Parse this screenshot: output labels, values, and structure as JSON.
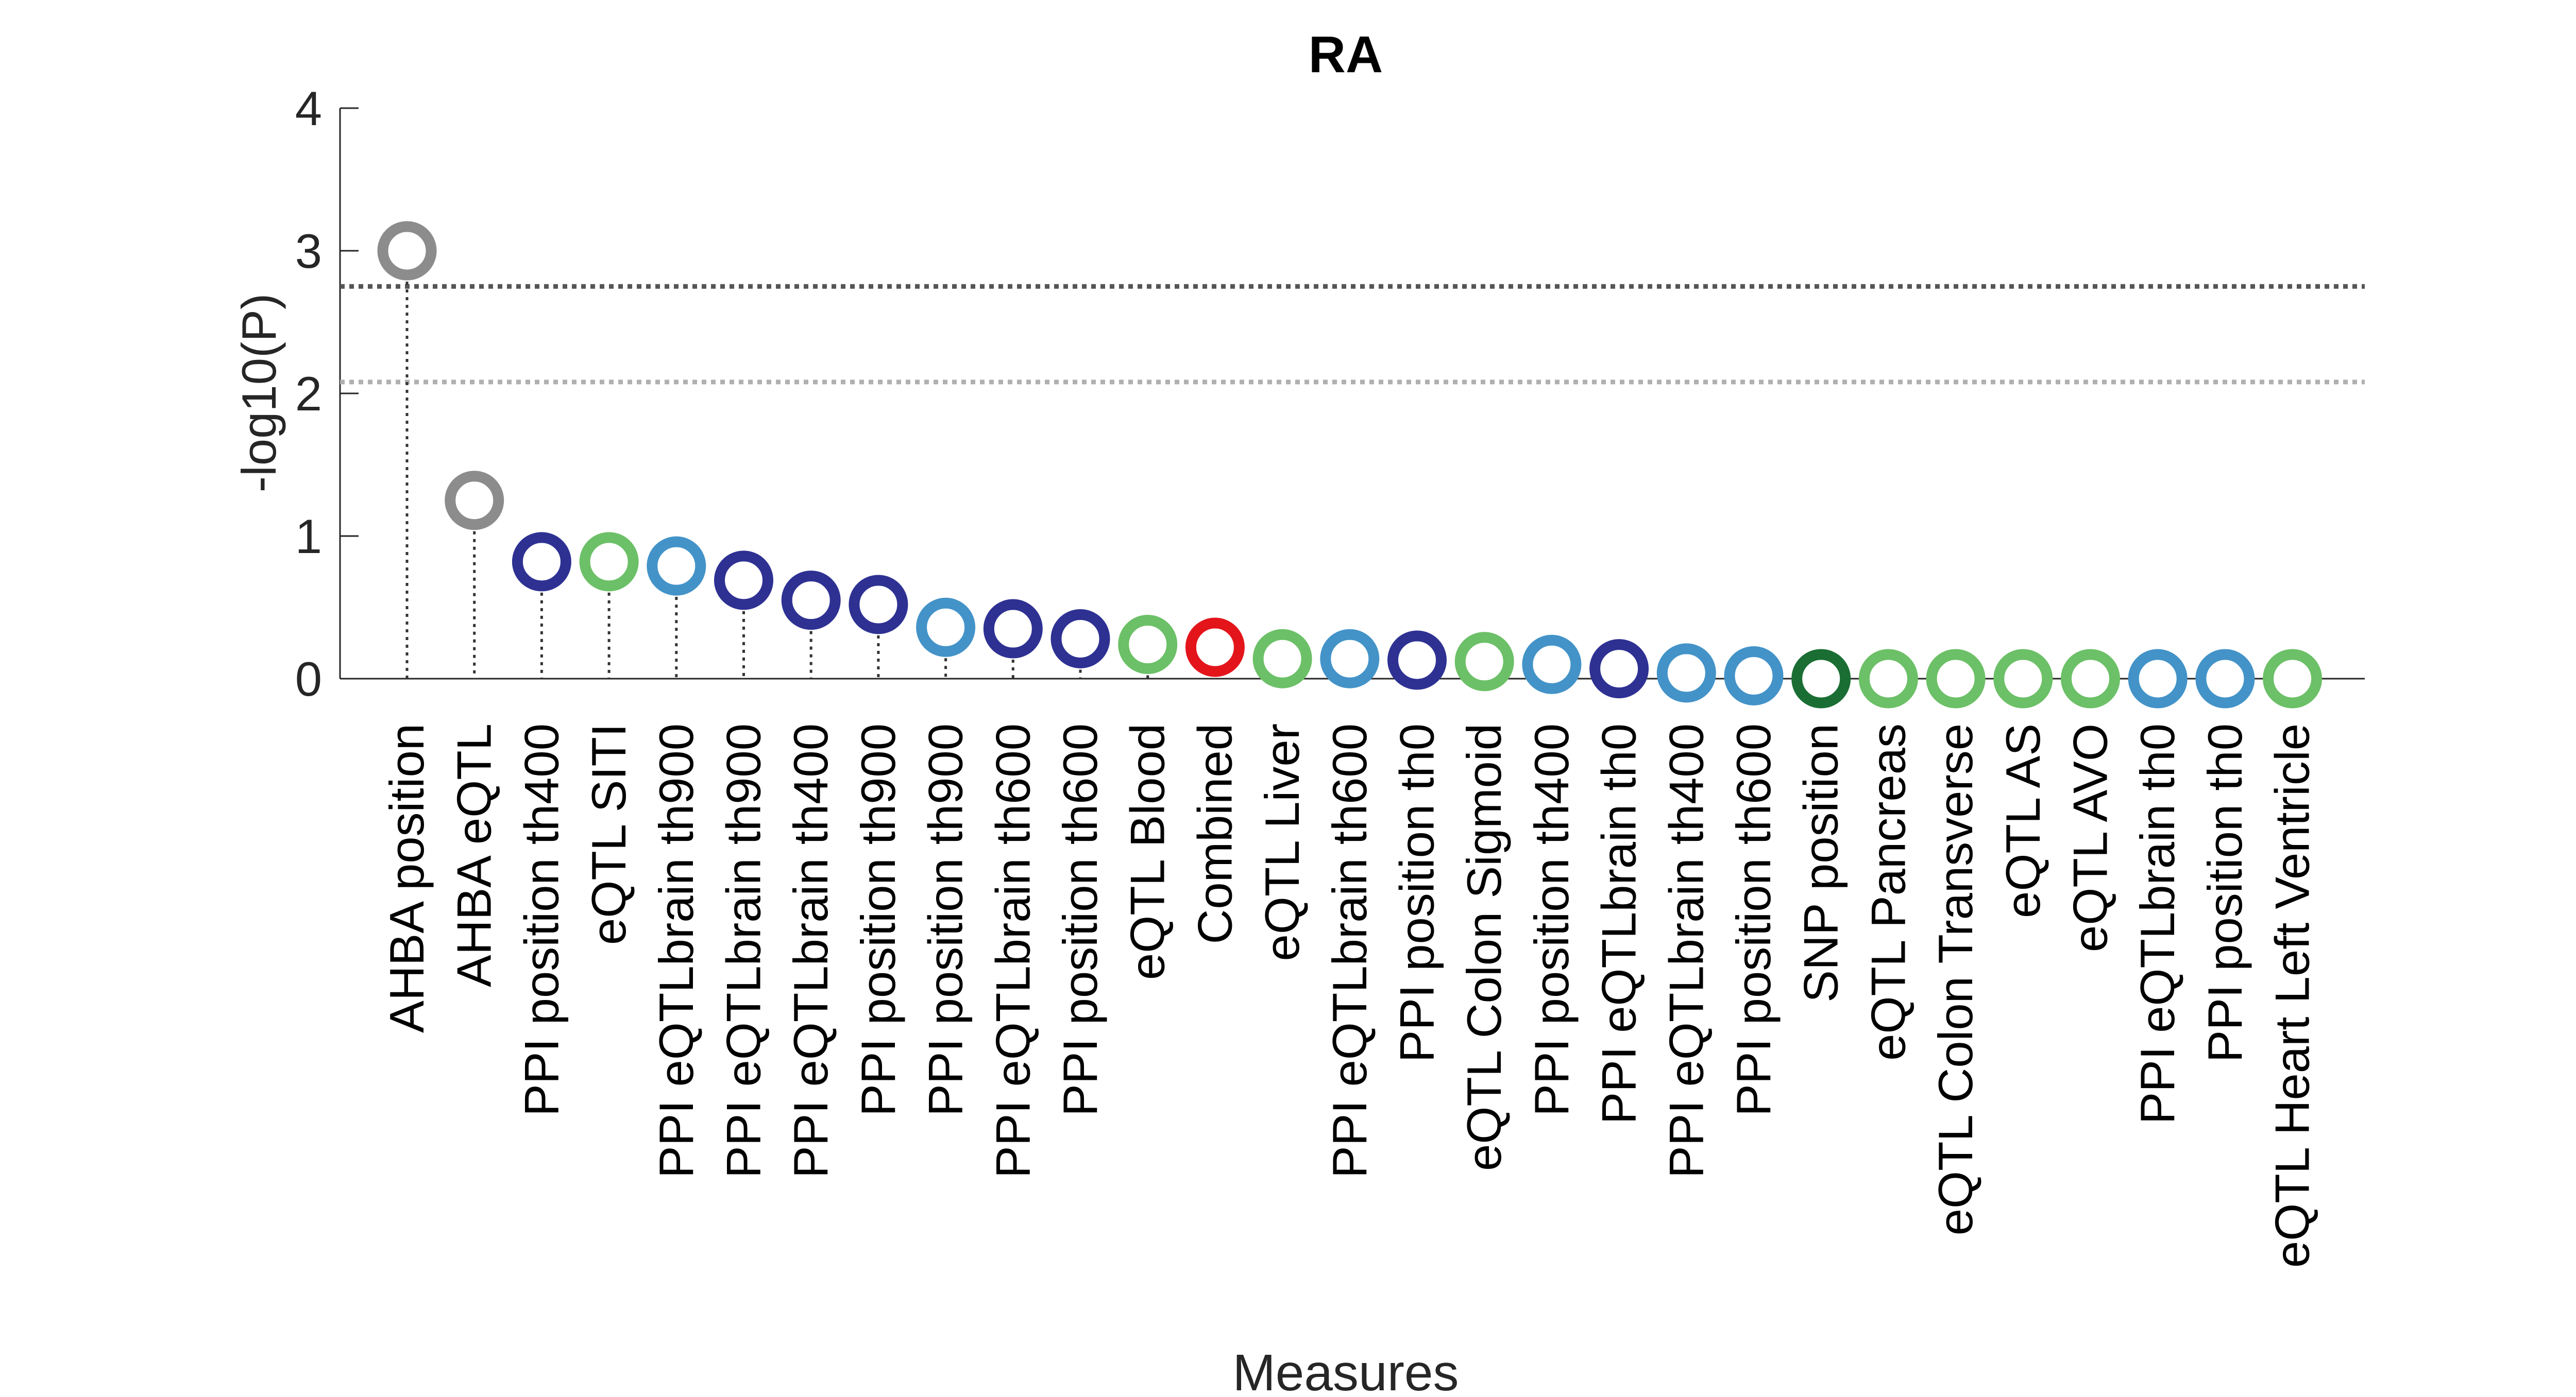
{
  "chart_data": {
    "type": "scatter",
    "title": "RA",
    "xlabel": "Measures",
    "ylabel": "-log10(P)",
    "ylim": [
      0,
      4
    ],
    "yticks": [
      "0",
      "1",
      "2",
      "3",
      "4"
    ],
    "grid": false,
    "threshold_lines": [
      {
        "y": 2.75,
        "color": "#555555",
        "style": "dotted"
      },
      {
        "y": 2.08,
        "color": "#b0b0b0",
        "style": "dotted"
      }
    ],
    "categories": [
      "AHBA position",
      "AHBA eQTL",
      "PPI position th400",
      "eQTL SITI",
      "PPI eQTLbrain th900",
      "PPI eQTLbrain th900",
      "PPI eQTLbrain th400",
      "PPI position th900",
      "PPI position th900",
      "PPI eQTLbrain th600",
      "PPI position th600",
      "eQTL Blood",
      "Combined",
      "eQTL Liver",
      "PPI eQTLbrain th600",
      "PPI position th0",
      "eQTL Colon Sigmoid",
      "PPI position th400",
      "PPI eQTLbrain th0",
      "PPI eQTLbrain th400",
      "PPI position th600",
      "SNP position",
      "eQTL Pancreas",
      "eQTL Colon Transverse",
      "eQTL AS",
      "eQTL AVO",
      "PPI eQTLbrain th0",
      "PPI position th0",
      "eQTL Heart Left Ventricle"
    ],
    "values": [
      3.0,
      1.25,
      0.82,
      0.82,
      0.79,
      0.69,
      0.55,
      0.52,
      0.36,
      0.35,
      0.28,
      0.24,
      0.22,
      0.14,
      0.14,
      0.13,
      0.12,
      0.1,
      0.07,
      0.04,
      0.02,
      0.0,
      0.0,
      0.0,
      0.0,
      0.0,
      0.0,
      0.0,
      0.0
    ],
    "colors": [
      "#8c8c8c",
      "#8c8c8c",
      "#2e3192",
      "#6cc067",
      "#4393c8",
      "#2e3192",
      "#2e3192",
      "#2e3192",
      "#4393c8",
      "#2e3192",
      "#2e3192",
      "#6cc067",
      "#e3151b",
      "#6cc067",
      "#4393c8",
      "#2e3192",
      "#6cc067",
      "#4393c8",
      "#2e3192",
      "#4393c8",
      "#4393c8",
      "#1a6e33",
      "#6cc067",
      "#6cc067",
      "#6cc067",
      "#6cc067",
      "#4393c8",
      "#4393c8",
      "#6cc067"
    ]
  }
}
